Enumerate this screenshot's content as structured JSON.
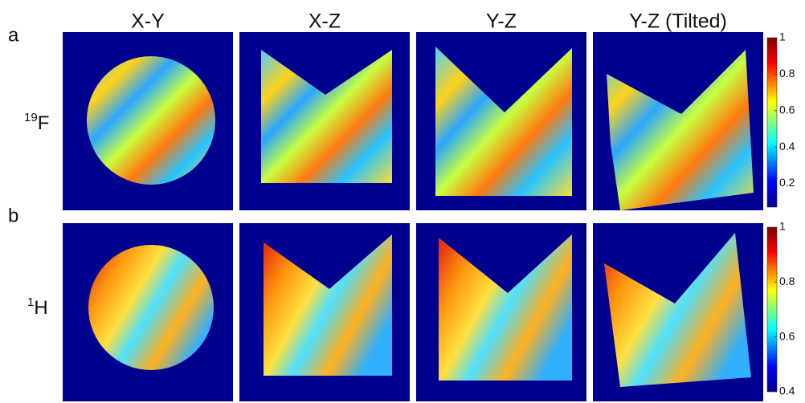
{
  "panel_letters": [
    "a",
    "b"
  ],
  "column_titles": [
    "X-Y",
    "X-Z",
    "Y-Z",
    "Y-Z (Tilted)"
  ],
  "rows": [
    {
      "label_sup": "19",
      "label": "F",
      "colorbar": {
        "clim": [
          0.07,
          1
        ],
        "ticks": [
          0.2,
          0.4,
          0.6,
          0.8,
          1
        ]
      }
    },
    {
      "label_sup": "1",
      "label": "H",
      "colorbar": {
        "clim": [
          0.4,
          1
        ],
        "ticks": [
          0.4,
          0.6,
          0.8,
          1
        ]
      }
    }
  ]
}
